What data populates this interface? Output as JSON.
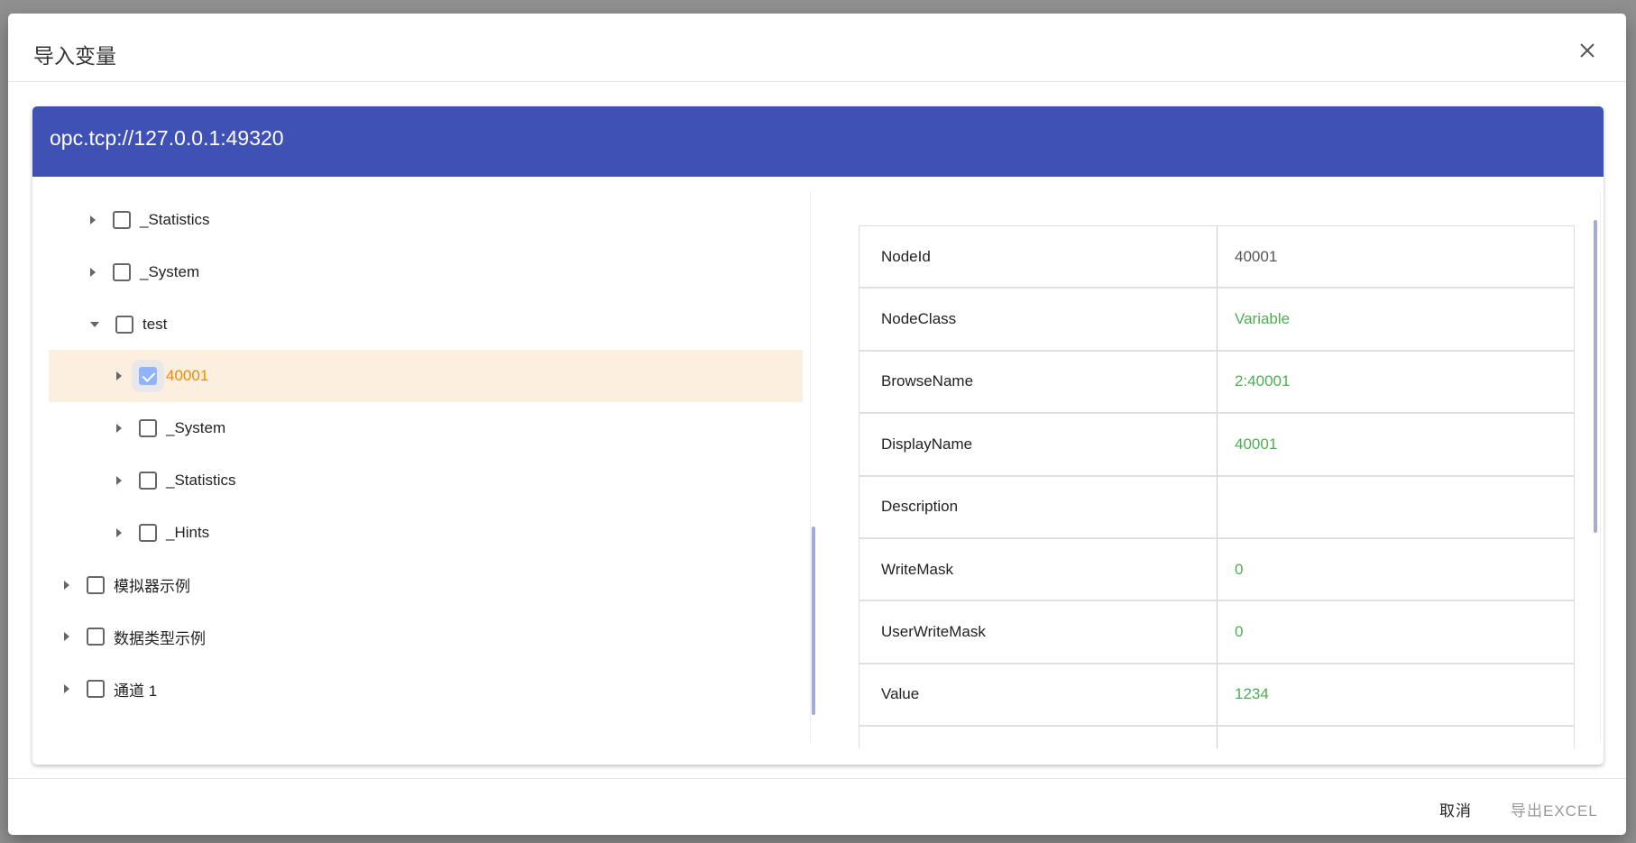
{
  "dialog": {
    "title": "导入变量",
    "close_icon": "close-icon"
  },
  "server": {
    "url": "opc.tcp://127.0.0.1:49320"
  },
  "tree": [
    {
      "label": "_Statistics",
      "level": 1,
      "expanded": false,
      "checked": false
    },
    {
      "label": "_System",
      "level": 1,
      "expanded": false,
      "checked": false
    },
    {
      "label": "test",
      "level": 1,
      "expanded": true,
      "checked": false
    },
    {
      "label": "40001",
      "level": 2,
      "expanded": false,
      "checked": true,
      "selected": true
    },
    {
      "label": "_System",
      "level": 2,
      "expanded": false,
      "checked": false
    },
    {
      "label": "_Statistics",
      "level": 2,
      "expanded": false,
      "checked": false
    },
    {
      "label": "_Hints",
      "level": 2,
      "expanded": false,
      "checked": false
    },
    {
      "label": "模拟器示例",
      "level": 0,
      "expanded": false,
      "checked": false
    },
    {
      "label": "数据类型示例",
      "level": 0,
      "expanded": false,
      "checked": false
    },
    {
      "label": "通道 1",
      "level": 0,
      "expanded": false,
      "checked": false
    }
  ],
  "attributes": [
    {
      "key": "NodeId",
      "value": "40001"
    },
    {
      "key": "NodeClass",
      "value": "Variable"
    },
    {
      "key": "BrowseName",
      "value": "2:40001"
    },
    {
      "key": "DisplayName",
      "value": "40001"
    },
    {
      "key": "Description",
      "value": ""
    },
    {
      "key": "WriteMask",
      "value": "0"
    },
    {
      "key": "UserWriteMask",
      "value": "0"
    },
    {
      "key": "Value",
      "value": "1234"
    },
    {
      "key": "",
      "value": ""
    }
  ],
  "footer": {
    "cancel": "取消",
    "export": "导出EXCEL"
  },
  "colors": {
    "header": "#3f51b5",
    "value": "#4caf50",
    "selected_text": "#f28a00",
    "selected_bg": "#fdefe0"
  }
}
